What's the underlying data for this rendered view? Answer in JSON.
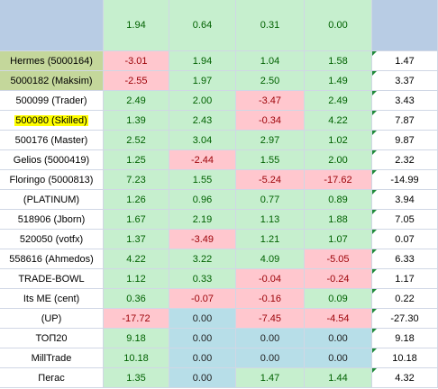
{
  "table": {
    "header": {
      "values": [
        "1.94",
        "0.64",
        "0.31",
        "0.00"
      ],
      "fills": [
        "green",
        "green",
        "green",
        "green"
      ]
    },
    "rows": [
      {
        "name": "Hermes (5000164)",
        "highlight": "olive",
        "values": [
          "-3.01",
          "1.94",
          "1.04",
          "1.58"
        ],
        "fills": [
          "pink",
          "green",
          "green",
          "green"
        ],
        "total": "1.47"
      },
      {
        "name": "5000182 (Maksim)",
        "highlight": "olive",
        "values": [
          "-2.55",
          "1.97",
          "2.50",
          "1.49"
        ],
        "fills": [
          "pink",
          "green",
          "green",
          "green"
        ],
        "total": "3.37"
      },
      {
        "name": "500099 (Trader)",
        "values": [
          "2.49",
          "2.00",
          "-3.47",
          "2.49"
        ],
        "fills": [
          "green",
          "green",
          "pink",
          "green"
        ],
        "total": "3.43"
      },
      {
        "name": "500080 (Skilled)",
        "highlight": "yellow",
        "values": [
          "1.39",
          "2.43",
          "-0.34",
          "4.22"
        ],
        "fills": [
          "green",
          "green",
          "pink",
          "green"
        ],
        "total": "7.87"
      },
      {
        "name": "500176 (Master)",
        "values": [
          "2.52",
          "3.04",
          "2.97",
          "1.02"
        ],
        "fills": [
          "green",
          "green",
          "green",
          "green"
        ],
        "total": "9.87"
      },
      {
        "name": "Gelios (5000419)",
        "values": [
          "1.25",
          "-2.44",
          "1.55",
          "2.00"
        ],
        "fills": [
          "green",
          "pink",
          "green",
          "green"
        ],
        "total": "2.32"
      },
      {
        "name": "Floringo (5000813)",
        "values": [
          "7.23",
          "1.55",
          "-5.24",
          "-17.62"
        ],
        "fills": [
          "green",
          "green",
          "pink",
          "pink"
        ],
        "total": "-14.99"
      },
      {
        "name": "(PLATINUM)",
        "values": [
          "1.26",
          "0.96",
          "0.77",
          "0.89"
        ],
        "fills": [
          "green",
          "green",
          "green",
          "green"
        ],
        "total": "3.94"
      },
      {
        "name": "518906 (Jborn)",
        "values": [
          "1.67",
          "2.19",
          "1.13",
          "1.88"
        ],
        "fills": [
          "green",
          "green",
          "green",
          "green"
        ],
        "total": "7.05"
      },
      {
        "name": "520050 (votfx)",
        "values": [
          "1.37",
          "-3.49",
          "1.21",
          "1.07"
        ],
        "fills": [
          "green",
          "pink",
          "green",
          "green"
        ],
        "total": "0.07"
      },
      {
        "name": "558616 (Ahmedos)",
        "values": [
          "4.22",
          "3.22",
          "4.09",
          "-5.05"
        ],
        "fills": [
          "green",
          "green",
          "green",
          "pink"
        ],
        "total": "6.33"
      },
      {
        "name": "TRADE-BOWL",
        "values": [
          "1.12",
          "0.33",
          "-0.04",
          "-0.24"
        ],
        "fills": [
          "green",
          "green",
          "pink",
          "pink"
        ],
        "total": "1.17"
      },
      {
        "name": "Its ME (cent)",
        "values": [
          "0.36",
          "-0.07",
          "-0.16",
          "0.09"
        ],
        "fills": [
          "green",
          "pink",
          "pink",
          "green"
        ],
        "total": "0.22"
      },
      {
        "name": "(UP)",
        "values": [
          "-17.72",
          "0.00",
          "-7.45",
          "-4.54"
        ],
        "fills": [
          "pink",
          "blue",
          "pink",
          "pink"
        ],
        "total": "-27.30"
      },
      {
        "name": "ТОП20",
        "values": [
          "9.18",
          "0.00",
          "0.00",
          "0.00"
        ],
        "fills": [
          "green",
          "blue",
          "blue",
          "blue"
        ],
        "total": "9.18"
      },
      {
        "name": "MillTrade",
        "values": [
          "10.18",
          "0.00",
          "0.00",
          "0.00"
        ],
        "fills": [
          "green",
          "blue",
          "blue",
          "blue"
        ],
        "total": "10.18"
      },
      {
        "name": "Пегас",
        "values": [
          "1.35",
          "0.00",
          "1.47",
          "1.44"
        ],
        "fills": [
          "green",
          "blue",
          "green",
          "green"
        ],
        "total": "4.32"
      }
    ]
  }
}
